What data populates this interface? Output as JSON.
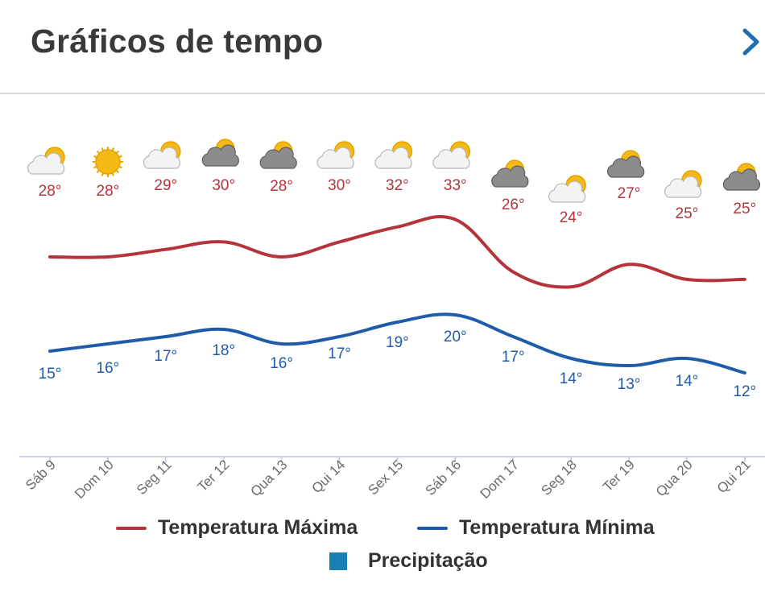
{
  "header": {
    "title": "Gráficos de tempo",
    "next_icon": "chevron-right-icon"
  },
  "colors": {
    "max": "#b5333b",
    "min": "#1f5ba8",
    "precip": "#1a7fb5",
    "axis": "#c7d4e6",
    "tick": "#6b6b6b"
  },
  "chart_data": {
    "type": "line",
    "categories": [
      "Sáb 9",
      "Dom 10",
      "Seg 11",
      "Ter 12",
      "Qua 13",
      "Qui 14",
      "Sex 15",
      "Sáb 16",
      "Dom 17",
      "Seg 18",
      "Ter 19",
      "Qua 20",
      "Qui 21"
    ],
    "icons": [
      "partly-sunny-icon",
      "sunny-icon",
      "partly-sunny-icon",
      "cloudy-sun-icon",
      "cloudy-sun-icon",
      "partly-sunny-icon",
      "partly-sunny-icon",
      "partly-sunny-icon",
      "cloudy-sun-icon",
      "partly-sunny-icon",
      "cloudy-sun-icon",
      "partly-sunny-icon",
      "cloudy-sun-icon"
    ],
    "series": [
      {
        "name": "Temperatura Máxima",
        "values": [
          28,
          28,
          29,
          30,
          28,
          30,
          32,
          33,
          26,
          24,
          27,
          25,
          25
        ]
      },
      {
        "name": "Temperatura Mínima",
        "values": [
          15,
          16,
          17,
          18,
          16,
          17,
          19,
          20,
          17,
          14,
          13,
          14,
          12
        ]
      }
    ],
    "legend": [
      "Temperatura Máxima",
      "Temperatura Mínima",
      "Precipitação"
    ],
    "legend_position": "bottom",
    "grid": false
  }
}
